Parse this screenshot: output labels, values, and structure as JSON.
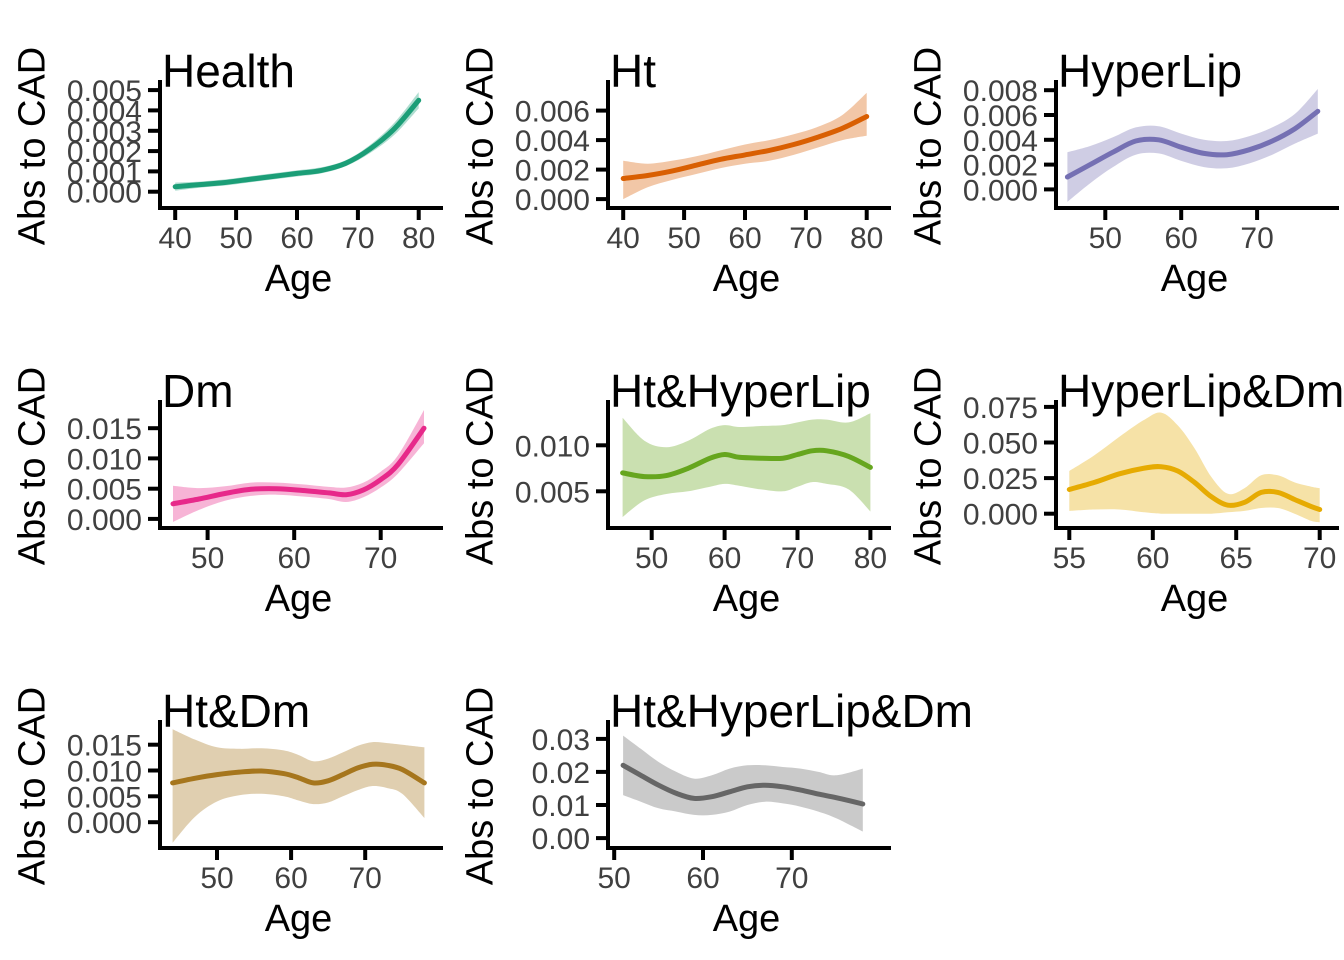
{
  "figure": {
    "xlabel": "Age",
    "ylabel": "Abs to CAD",
    "background_color": "#FFFFFF",
    "axis_color": "#000000",
    "tick_label_color": "#404040",
    "title_color": "#000000",
    "layout": "3x3 facet grid, 8 panels, last cell empty",
    "ribbon_opacity": 0.35
  },
  "chart_data": [
    {
      "type": "area",
      "title": "Health",
      "xlabel": "Age",
      "ylabel": "Abs to CAD",
      "line_color": "#1B9E77",
      "xlim": [
        37.5,
        83
      ],
      "ylim": [
        -0.0008,
        0.0053
      ],
      "x_tick_values": [
        40,
        50,
        60,
        70,
        80
      ],
      "x_tick_labels": [
        "40",
        "50",
        "60",
        "70",
        "80"
      ],
      "y_tick_values": [
        0.0,
        0.001,
        0.002,
        0.003,
        0.004,
        0.005
      ],
      "y_tick_labels": [
        "0.000",
        "0.001",
        "0.002",
        "0.003",
        "0.004",
        "0.005"
      ],
      "x": [
        40,
        44,
        48,
        52,
        56,
        60,
        64,
        68,
        72,
        76,
        80
      ],
      "y": [
        0.00025,
        0.00035,
        0.00045,
        0.0006,
        0.00075,
        0.0009,
        0.00105,
        0.0014,
        0.0021,
        0.0031,
        0.0045
      ],
      "y_lower": [
        5e-05,
        0.0002,
        0.0003,
        0.00045,
        0.0006,
        0.00075,
        0.0009,
        0.00125,
        0.0019,
        0.0028,
        0.0041
      ],
      "y_upper": [
        0.00045,
        0.0005,
        0.0006,
        0.00075,
        0.0009,
        0.00105,
        0.0012,
        0.00155,
        0.0023,
        0.0034,
        0.0049
      ]
    },
    {
      "type": "area",
      "title": "Ht",
      "xlabel": "Age",
      "ylabel": "Abs to CAD",
      "line_color": "#D95F02",
      "xlim": [
        37.5,
        83
      ],
      "ylim": [
        -0.0006,
        0.0078
      ],
      "x_tick_values": [
        40,
        50,
        60,
        70,
        80
      ],
      "x_tick_labels": [
        "40",
        "50",
        "60",
        "70",
        "80"
      ],
      "y_tick_values": [
        0.0,
        0.002,
        0.004,
        0.006
      ],
      "y_tick_labels": [
        "0.000",
        "0.002",
        "0.004",
        "0.006"
      ],
      "x": [
        40,
        44,
        48,
        52,
        56,
        60,
        64,
        68,
        72,
        76,
        80
      ],
      "y": [
        0.0014,
        0.0016,
        0.0019,
        0.0023,
        0.0027,
        0.003,
        0.0033,
        0.0037,
        0.0042,
        0.0048,
        0.0056
      ],
      "y_lower": [
        0.0,
        0.0008,
        0.0013,
        0.0017,
        0.0021,
        0.0024,
        0.0026,
        0.003,
        0.0035,
        0.004,
        0.0043
      ],
      "y_upper": [
        0.0026,
        0.0024,
        0.0026,
        0.0029,
        0.0033,
        0.0037,
        0.004,
        0.0044,
        0.0049,
        0.0057,
        0.0072
      ]
    },
    {
      "type": "area",
      "title": "HyperLip",
      "xlabel": "Age",
      "ylabel": "Abs to CAD",
      "line_color": "#7570B3",
      "xlim": [
        43.5,
        80
      ],
      "ylim": [
        -0.0015,
        0.0085
      ],
      "x_tick_values": [
        50,
        60,
        70
      ],
      "x_tick_labels": [
        "50",
        "60",
        "70"
      ],
      "y_tick_values": [
        0.0,
        0.002,
        0.004,
        0.006,
        0.008
      ],
      "y_tick_labels": [
        "0.000",
        "0.002",
        "0.004",
        "0.006",
        "0.008"
      ],
      "x": [
        45,
        48,
        51,
        54,
        57,
        60,
        63,
        66,
        69,
        72,
        75,
        78
      ],
      "y": [
        0.001,
        0.002,
        0.003,
        0.0039,
        0.004,
        0.0034,
        0.0029,
        0.0028,
        0.0032,
        0.0039,
        0.0049,
        0.0063
      ],
      "y_lower": [
        -0.001,
        0.0005,
        0.0018,
        0.0028,
        0.0029,
        0.0023,
        0.0018,
        0.0017,
        0.0021,
        0.0028,
        0.0037,
        0.0045
      ],
      "y_upper": [
        0.003,
        0.0035,
        0.0042,
        0.005,
        0.0051,
        0.0045,
        0.004,
        0.0039,
        0.0043,
        0.005,
        0.0061,
        0.0081
      ]
    },
    {
      "type": "area",
      "title": "Dm",
      "xlabel": "Age",
      "ylabel": "Abs to CAD",
      "line_color": "#E7298A",
      "xlim": [
        44.5,
        76.5
      ],
      "ylim": [
        -0.0015,
        0.019
      ],
      "x_tick_values": [
        50,
        60,
        70
      ],
      "x_tick_labels": [
        "50",
        "60",
        "70"
      ],
      "y_tick_values": [
        0.0,
        0.005,
        0.01,
        0.015
      ],
      "y_tick_labels": [
        "0.000",
        "0.005",
        "0.010",
        "0.015"
      ],
      "x": [
        46,
        49,
        52,
        55,
        58,
        61,
        64,
        66,
        68,
        70,
        72,
        75
      ],
      "y": [
        0.0025,
        0.0033,
        0.0042,
        0.0049,
        0.005,
        0.0047,
        0.0043,
        0.004,
        0.0048,
        0.0065,
        0.009,
        0.015
      ],
      "y_lower": [
        -0.0005,
        0.0015,
        0.003,
        0.0038,
        0.004,
        0.0037,
        0.0033,
        0.0028,
        0.0036,
        0.0052,
        0.0075,
        0.0125
      ],
      "y_upper": [
        0.0055,
        0.0051,
        0.0054,
        0.006,
        0.006,
        0.0057,
        0.0053,
        0.0052,
        0.006,
        0.0078,
        0.0105,
        0.018
      ]
    },
    {
      "type": "area",
      "title": "Ht&HyperLip",
      "xlabel": "Age",
      "ylabel": "Abs to CAD",
      "line_color": "#66A61E",
      "xlim": [
        44,
        82
      ],
      "ylim": [
        0.001,
        0.0145
      ],
      "x_tick_values": [
        50,
        60,
        70,
        80
      ],
      "x_tick_labels": [
        "50",
        "60",
        "70",
        "80"
      ],
      "y_tick_values": [
        0.005,
        0.01
      ],
      "y_tick_labels": [
        "0.005",
        "0.010"
      ],
      "x": [
        46,
        49,
        52,
        55,
        58,
        60,
        62,
        65,
        68,
        70,
        72,
        74,
        77,
        80
      ],
      "y": [
        0.007,
        0.0066,
        0.0067,
        0.0075,
        0.0086,
        0.009,
        0.0087,
        0.0086,
        0.0086,
        0.009,
        0.0094,
        0.0094,
        0.0088,
        0.0076
      ],
      "y_lower": [
        0.0022,
        0.004,
        0.0047,
        0.005,
        0.0055,
        0.0058,
        0.0056,
        0.0052,
        0.005,
        0.0055,
        0.006,
        0.0058,
        0.0052,
        0.0028
      ],
      "y_upper": [
        0.013,
        0.0105,
        0.0098,
        0.0105,
        0.0118,
        0.0122,
        0.012,
        0.0121,
        0.0122,
        0.0125,
        0.0128,
        0.0128,
        0.0125,
        0.0135
      ]
    },
    {
      "type": "area",
      "title": "HyperLip&Dm",
      "xlabel": "Age",
      "ylabel": "Abs to CAD",
      "line_color": "#E6AB02",
      "xlim": [
        54.2,
        70.8
      ],
      "ylim": [
        -0.01,
        0.077
      ],
      "x_tick_values": [
        55,
        60,
        65,
        70
      ],
      "x_tick_labels": [
        "55",
        "60",
        "65",
        "70"
      ],
      "y_tick_values": [
        0.0,
        0.025,
        0.05,
        0.075
      ],
      "y_tick_labels": [
        "0.000",
        "0.025",
        "0.050",
        "0.075"
      ],
      "x": [
        55,
        56.5,
        58,
        59.5,
        60.5,
        61.5,
        62.5,
        63.5,
        64.5,
        65.5,
        66.5,
        67.5,
        68.5,
        69.5,
        70
      ],
      "y": [
        0.017,
        0.022,
        0.028,
        0.032,
        0.033,
        0.03,
        0.022,
        0.012,
        0.006,
        0.008,
        0.015,
        0.015,
        0.01,
        0.005,
        0.003
      ],
      "y_lower": [
        0.002,
        0.003,
        0.003,
        0.001,
        0.0,
        0.0,
        0.0,
        0.0,
        0.001,
        0.002,
        0.004,
        0.004,
        0.0,
        -0.005,
        -0.006
      ],
      "y_upper": [
        0.03,
        0.041,
        0.054,
        0.066,
        0.071,
        0.062,
        0.046,
        0.026,
        0.014,
        0.018,
        0.027,
        0.027,
        0.022,
        0.019,
        0.018
      ]
    },
    {
      "type": "area",
      "title": "Ht&Dm",
      "xlabel": "Age",
      "ylabel": "Abs to CAD",
      "line_color": "#A6761D",
      "xlim": [
        42.3,
        79.7
      ],
      "ylim": [
        -0.005,
        0.019
      ],
      "x_tick_values": [
        50,
        60,
        70
      ],
      "x_tick_labels": [
        "50",
        "60",
        "70"
      ],
      "y_tick_values": [
        0.0,
        0.005,
        0.01,
        0.015
      ],
      "y_tick_labels": [
        "0.000",
        "0.005",
        "0.010",
        "0.015"
      ],
      "x": [
        44,
        47,
        50,
        53,
        56,
        59,
        61,
        63,
        65,
        67,
        69,
        71,
        73,
        75,
        78
      ],
      "y": [
        0.0076,
        0.0085,
        0.0092,
        0.0097,
        0.0099,
        0.0094,
        0.0086,
        0.0076,
        0.008,
        0.0092,
        0.0105,
        0.0112,
        0.011,
        0.0102,
        0.0076
      ],
      "y_lower": [
        -0.004,
        0.001,
        0.004,
        0.0052,
        0.0055,
        0.005,
        0.0042,
        0.0035,
        0.0038,
        0.005,
        0.0062,
        0.007,
        0.0066,
        0.0055,
        0.0008
      ],
      "y_upper": [
        0.018,
        0.016,
        0.0145,
        0.0142,
        0.0143,
        0.0139,
        0.013,
        0.0118,
        0.0123,
        0.0135,
        0.0148,
        0.0155,
        0.0153,
        0.015,
        0.0145
      ]
    },
    {
      "type": "area",
      "title": "Ht&HyperLip&Dm",
      "xlabel": "Age",
      "ylabel": "Abs to CAD",
      "line_color": "#666666",
      "xlim": [
        49.3,
        80.5
      ],
      "ylim": [
        -0.003,
        0.0345
      ],
      "x_tick_values": [
        50,
        60,
        70
      ],
      "x_tick_labels": [
        "50",
        "60",
        "70"
      ],
      "y_tick_values": [
        0.0,
        0.01,
        0.02,
        0.03
      ],
      "y_tick_labels": [
        "0.00",
        "0.01",
        "0.02",
        "0.03"
      ],
      "x": [
        51,
        53,
        55,
        57,
        59,
        61,
        63,
        65,
        67,
        69,
        71,
        73,
        75,
        78
      ],
      "y": [
        0.022,
        0.019,
        0.016,
        0.0135,
        0.012,
        0.0125,
        0.014,
        0.0155,
        0.016,
        0.0155,
        0.0145,
        0.0133,
        0.0122,
        0.0103
      ],
      "y_lower": [
        0.013,
        0.011,
        0.009,
        0.008,
        0.007,
        0.007,
        0.008,
        0.01,
        0.011,
        0.0105,
        0.0095,
        0.008,
        0.006,
        0.002
      ],
      "y_upper": [
        0.031,
        0.027,
        0.023,
        0.02,
        0.018,
        0.019,
        0.021,
        0.022,
        0.022,
        0.0215,
        0.021,
        0.02,
        0.019,
        0.021
      ]
    }
  ]
}
